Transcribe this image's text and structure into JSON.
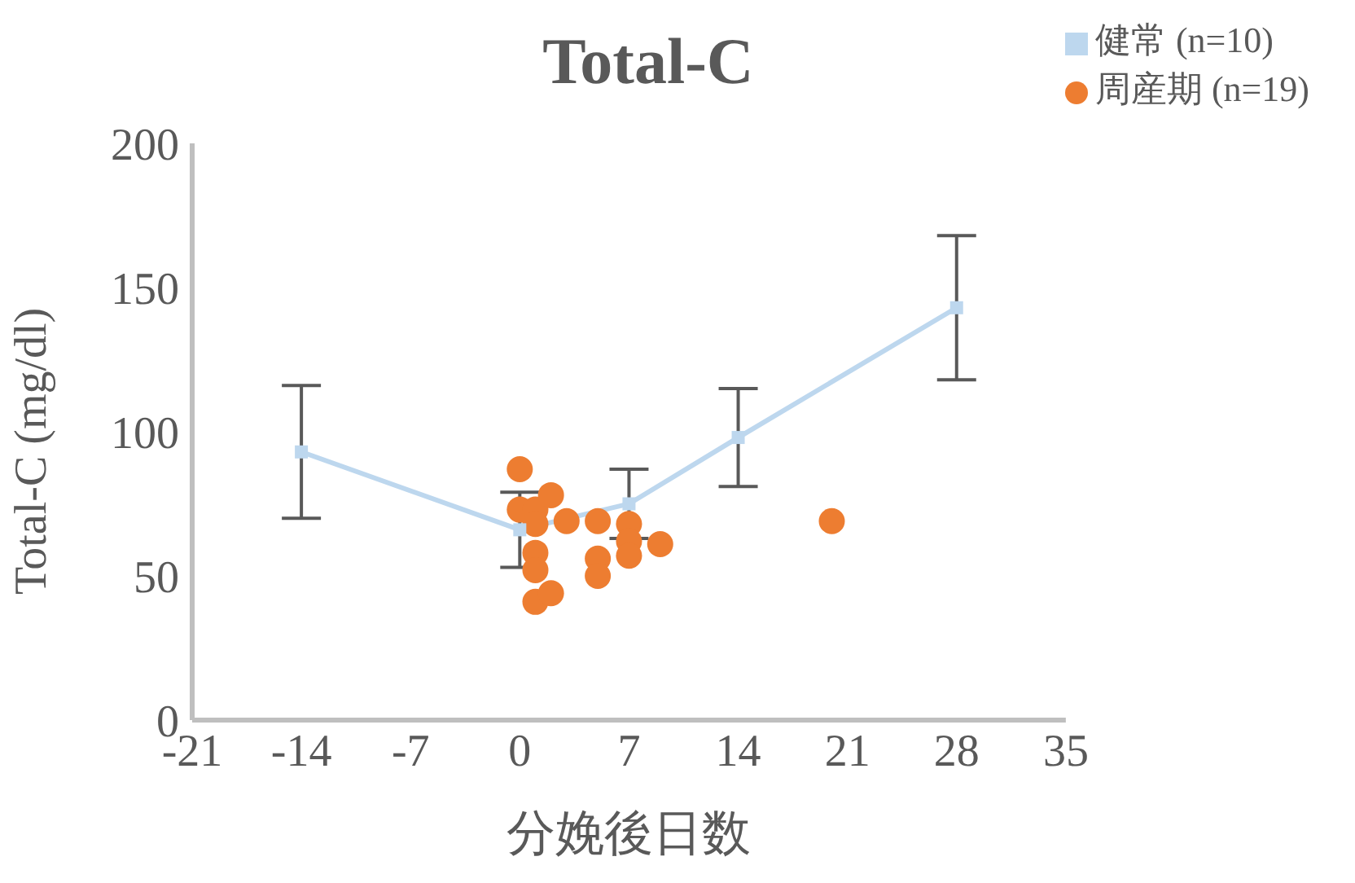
{
  "chart_data": {
    "type": "line",
    "title": "Total-C",
    "xlabel": "分娩後日数",
    "ylabel": "Total-C (mg/dl)",
    "xlim": [
      -21,
      35
    ],
    "xticks": [
      -21,
      -14,
      -7,
      0,
      7,
      14,
      21,
      28,
      35
    ],
    "ylim": [
      0,
      200
    ],
    "yticks": [
      0,
      50,
      100,
      150,
      200
    ],
    "grid": false,
    "legend": "top right",
    "series": [
      {
        "name": "健常 (n=10)",
        "color": "#bdd7ee",
        "marker": "square",
        "x": [
          -14,
          0,
          7,
          14,
          28
        ],
        "values": [
          93,
          66,
          75,
          98,
          143
        ],
        "errors": [
          23,
          13,
          12,
          17,
          25
        ]
      },
      {
        "name": "周産期 (n=19)",
        "type": "scatter",
        "color": "#ed7d31",
        "marker": "circle",
        "x": [
          0,
          0,
          1,
          2,
          1,
          3,
          5,
          7,
          7,
          9,
          1,
          1,
          5,
          7,
          5,
          1,
          2,
          20
        ],
        "values": [
          87,
          73,
          73,
          78,
          68,
          69,
          69,
          68,
          62,
          61,
          58,
          52,
          56,
          57,
          50,
          41,
          44,
          69
        ]
      }
    ]
  }
}
